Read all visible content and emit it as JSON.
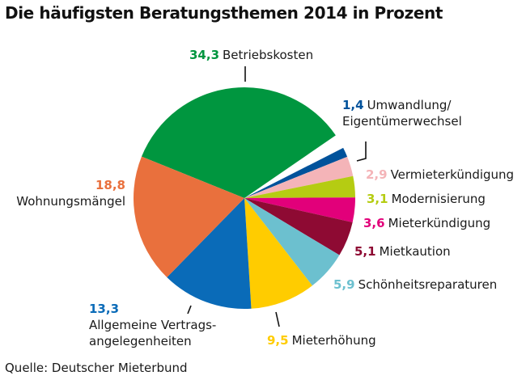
{
  "chart_data": {
    "type": "pie",
    "title": "Die häufigsten Beratungsthemen 2014 in Prozent",
    "source": "Quelle: Deutscher Mieterbund",
    "unit": "Prozent",
    "slices": [
      {
        "key": "betriebskosten",
        "value": 34.3,
        "value_label": "34,3",
        "label": "Betriebskosten",
        "color": "#00963f"
      },
      {
        "key": "umwandlung",
        "value": 1.4,
        "value_label": "1,4",
        "label": "Umwandlung/",
        "label2": "Eigentümerwechsel",
        "color": "#00529b"
      },
      {
        "key": "vermieterkuendigung",
        "value": 2.9,
        "value_label": "2,9",
        "label": "Vermieterkündigung",
        "color": "#f4b4b8"
      },
      {
        "key": "modernisierung",
        "value": 3.1,
        "value_label": "3,1",
        "label": "Modernisierung",
        "color": "#b5cc12"
      },
      {
        "key": "mieterkuendigung",
        "value": 3.6,
        "value_label": "3,6",
        "label": "Mieterkündigung",
        "color": "#e2007a"
      },
      {
        "key": "mietkaution",
        "value": 5.1,
        "value_label": "5,1",
        "label": "Mietkaution",
        "color": "#8e0a33"
      },
      {
        "key": "schoenheitsreparaturen",
        "value": 5.9,
        "value_label": "5,9",
        "label": "Schönheitsreparaturen",
        "color": "#6cc0cf"
      },
      {
        "key": "mieterhoehung",
        "value": 9.5,
        "value_label": "9,5",
        "label": "Mieterhöhung",
        "color": "#ffcc00"
      },
      {
        "key": "vertragsangelegenheiten",
        "value": 13.3,
        "value_label": "13,3",
        "label": "Allgemeine Vertrags-",
        "label2": "angelegenheiten",
        "color": "#0a6bb8"
      },
      {
        "key": "wohnungsmaengel",
        "value": 18.8,
        "value_label": "18,8",
        "label": "Wohnungsmängel",
        "color": "#e9703d"
      }
    ],
    "gap_value": 2.1,
    "legend": "none"
  }
}
